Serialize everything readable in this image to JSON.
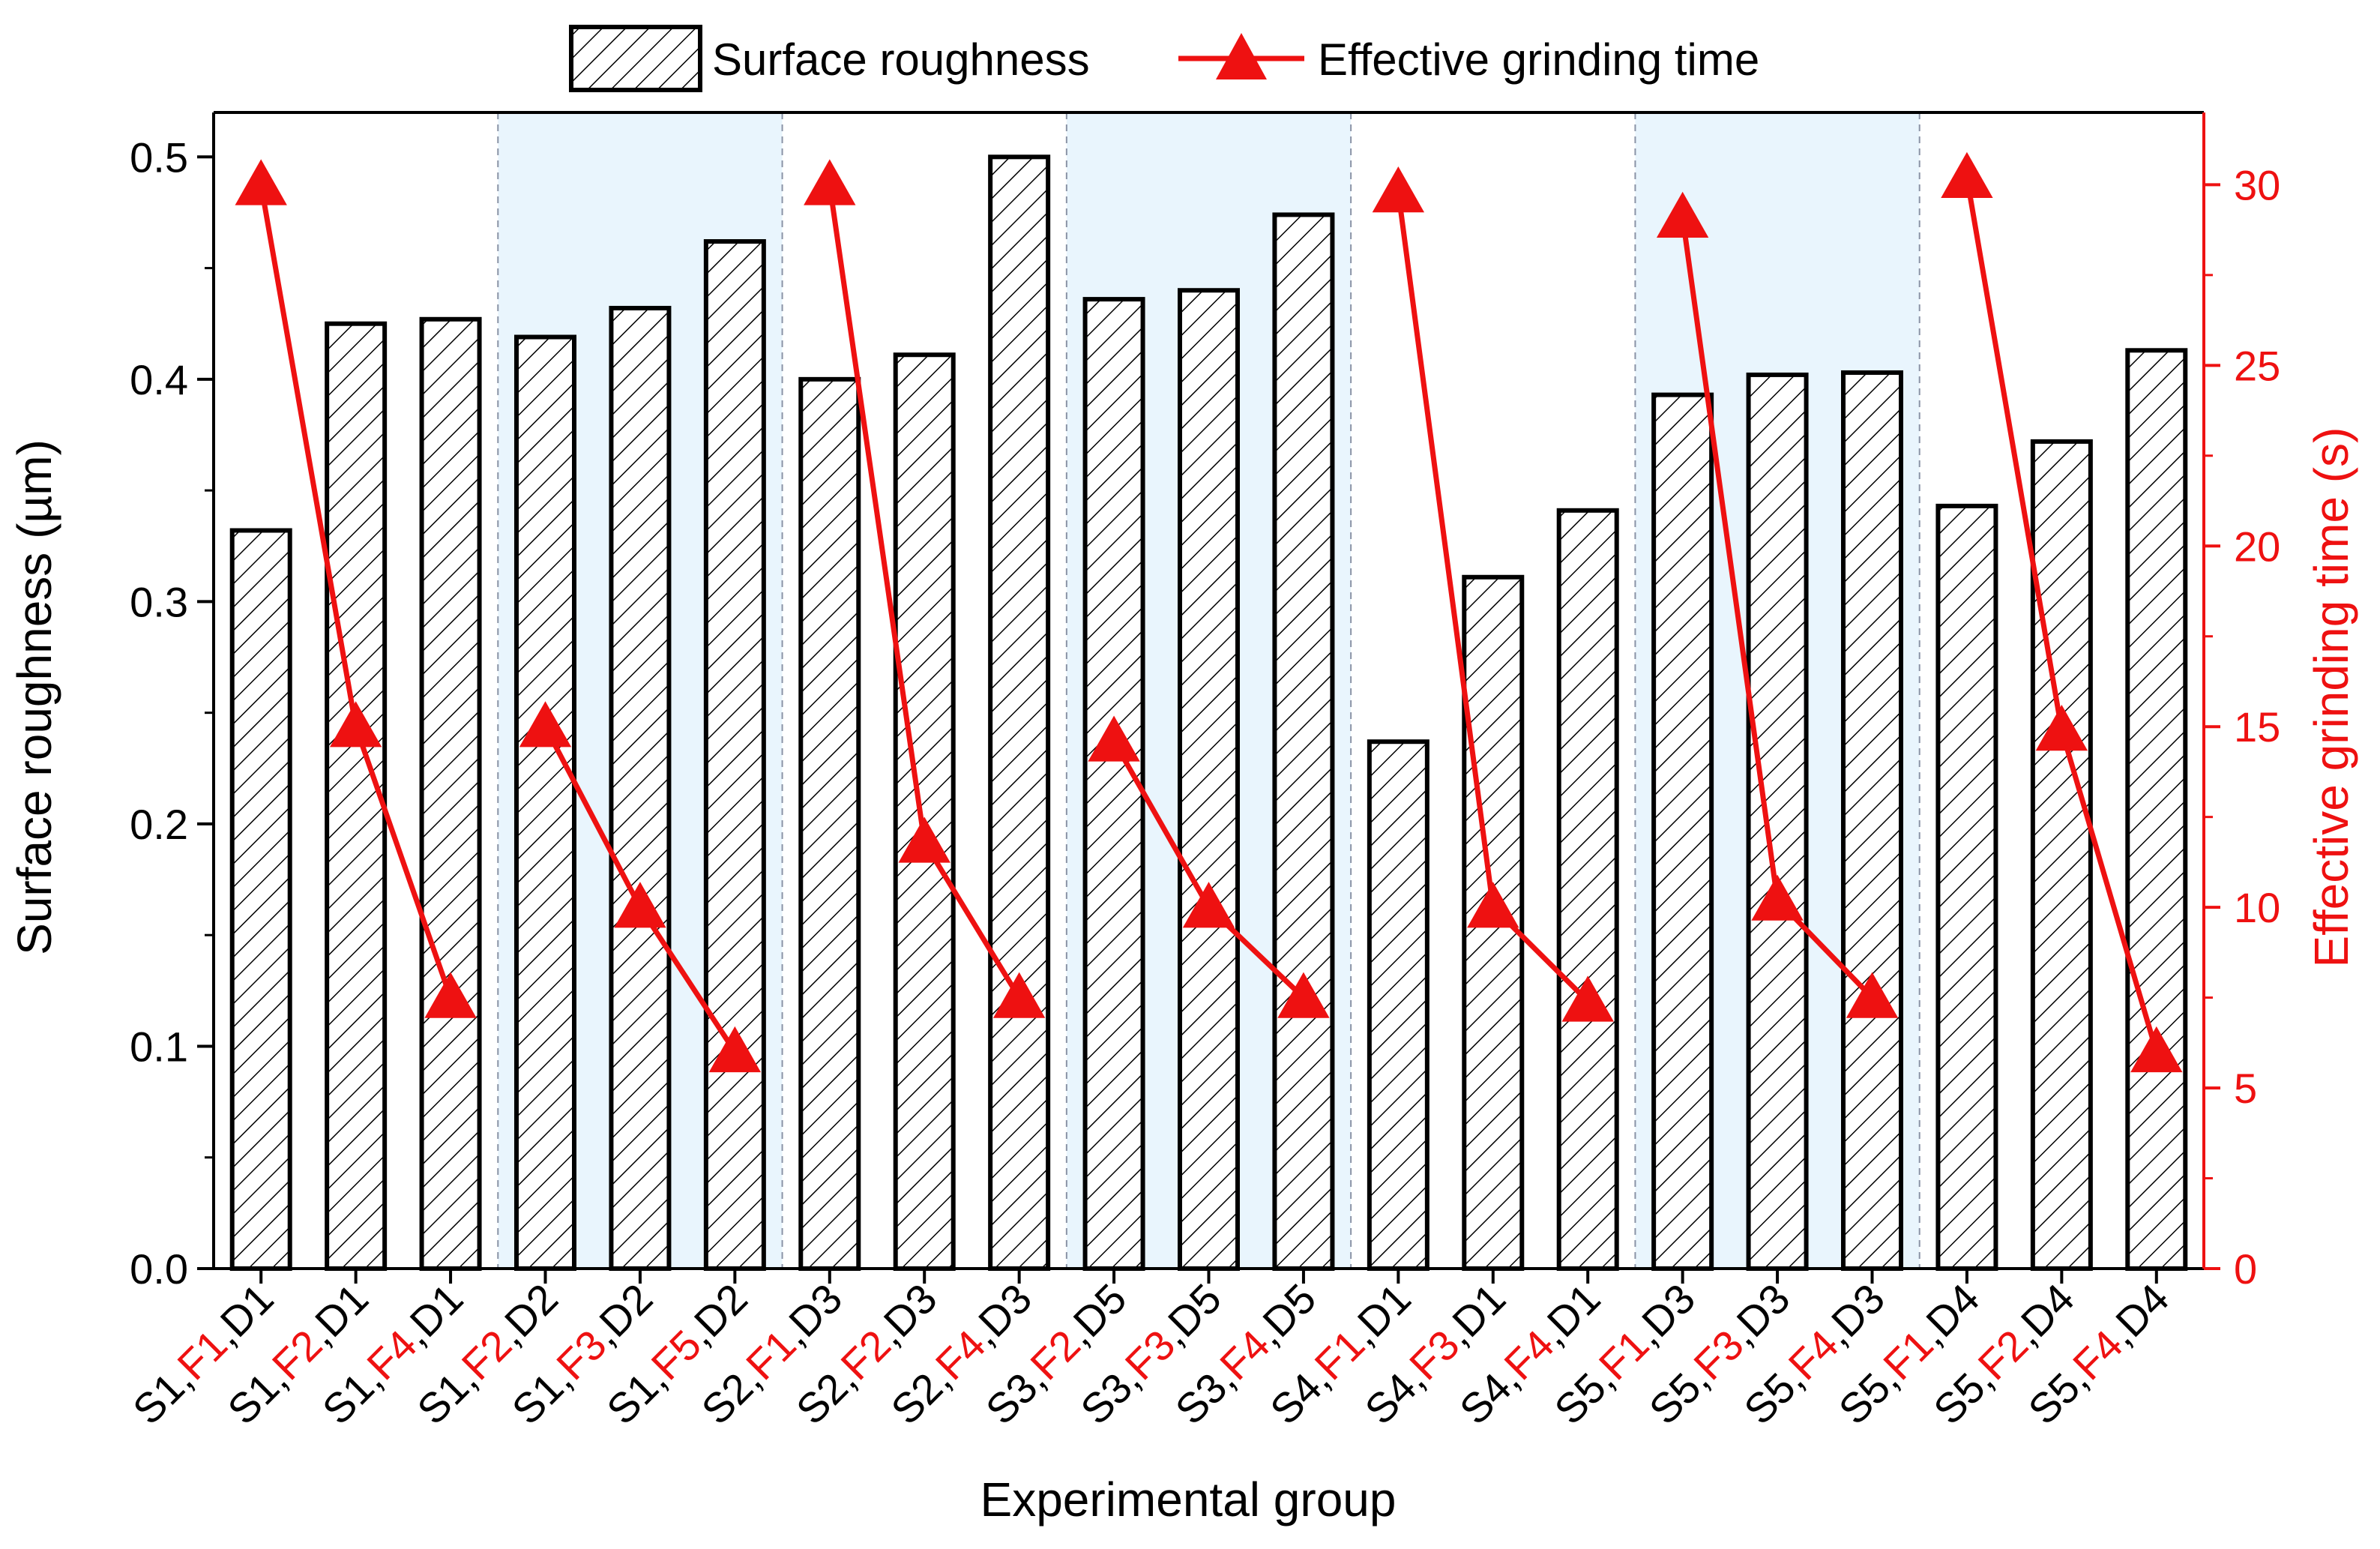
{
  "chart_data": {
    "type": "bar+line",
    "title": "",
    "xlabel": "Experimental group",
    "ylabel": "Surface roughness (µm)",
    "y2label": "Effective grinding time (s)",
    "ylim": [
      0,
      0.52
    ],
    "y2lim": [
      0,
      32
    ],
    "yticks": [
      "0.0",
      "0.1",
      "0.2",
      "0.3",
      "0.4",
      "0.5"
    ],
    "y2ticks": [
      "0",
      "5",
      "10",
      "15",
      "20",
      "25",
      "30"
    ],
    "legend": {
      "position": "top-center",
      "bar_label": "Surface roughness",
      "line_label": "Effective grinding time"
    },
    "colors": {
      "bar_fill": "#ffffff",
      "bar_stroke": "#000000",
      "line": "#ee1111",
      "highlight_bg": "#e9f5fd",
      "separator": "#8a93a6",
      "axis": "#000000",
      "right_axis": "#ee1111"
    },
    "categories": [
      {
        "s": "S1,",
        "f": "F1",
        "d": ",D1"
      },
      {
        "s": "S1,",
        "f": "F2",
        "d": ",D1"
      },
      {
        "s": "S1,",
        "f": "F4",
        "d": ",D1"
      },
      {
        "s": "S1,",
        "f": "F2",
        "d": ",D2"
      },
      {
        "s": "S1,",
        "f": "F3",
        "d": ",D2"
      },
      {
        "s": "S1,",
        "f": "F5",
        "d": ",D2"
      },
      {
        "s": "S2,",
        "f": "F1",
        "d": ",D3"
      },
      {
        "s": "S2,",
        "f": "F2",
        "d": ",D3"
      },
      {
        "s": "S2,",
        "f": "F4",
        "d": ",D3"
      },
      {
        "s": "S3,",
        "f": "F2",
        "d": ",D5"
      },
      {
        "s": "S3,",
        "f": "F3",
        "d": ",D5"
      },
      {
        "s": "S3,",
        "f": "F4",
        "d": ",D5"
      },
      {
        "s": "S4,",
        "f": "F1",
        "d": ",D1"
      },
      {
        "s": "S4,",
        "f": "F3",
        "d": ",D1"
      },
      {
        "s": "S4,",
        "f": "F4",
        "d": ",D1"
      },
      {
        "s": "S5,",
        "f": "F1",
        "d": ",D3"
      },
      {
        "s": "S5,",
        "f": "F3",
        "d": ",D3"
      },
      {
        "s": "S5,",
        "f": "F4",
        "d": ",D3"
      },
      {
        "s": "S5,",
        "f": "F1",
        "d": ",D4"
      },
      {
        "s": "S5,",
        "f": "F2",
        "d": ",D4"
      },
      {
        "s": "S5,",
        "f": "F4",
        "d": ",D4"
      }
    ],
    "series": [
      {
        "name": "Surface roughness",
        "type": "bar",
        "axis": "left",
        "values": [
          0.332,
          0.425,
          0.427,
          0.419,
          0.432,
          0.462,
          0.4,
          0.411,
          0.5,
          0.436,
          0.44,
          0.474,
          0.237,
          0.311,
          0.341,
          0.393,
          0.402,
          0.403,
          0.343,
          0.372,
          0.413
        ]
      },
      {
        "name": "Effective grinding time",
        "type": "line",
        "axis": "right",
        "segments": [
          [
            0,
            2
          ],
          [
            3,
            5
          ],
          [
            6,
            8
          ],
          [
            9,
            11
          ],
          [
            12,
            14
          ],
          [
            15,
            17
          ],
          [
            18,
            20
          ]
        ],
        "values": [
          30.0,
          15.0,
          7.5,
          15.0,
          10.0,
          6.0,
          30.0,
          11.8,
          7.5,
          14.6,
          10.0,
          7.5,
          29.8,
          10.0,
          7.4,
          29.1,
          10.2,
          7.5,
          30.2,
          14.9,
          6.0
        ]
      }
    ],
    "groups": [
      {
        "start": 0,
        "end": 2,
        "shaded": false
      },
      {
        "start": 3,
        "end": 5,
        "shaded": true
      },
      {
        "start": 6,
        "end": 8,
        "shaded": false
      },
      {
        "start": 9,
        "end": 11,
        "shaded": true
      },
      {
        "start": 12,
        "end": 14,
        "shaded": false
      },
      {
        "start": 15,
        "end": 17,
        "shaded": true
      },
      {
        "start": 18,
        "end": 20,
        "shaded": false
      }
    ]
  }
}
